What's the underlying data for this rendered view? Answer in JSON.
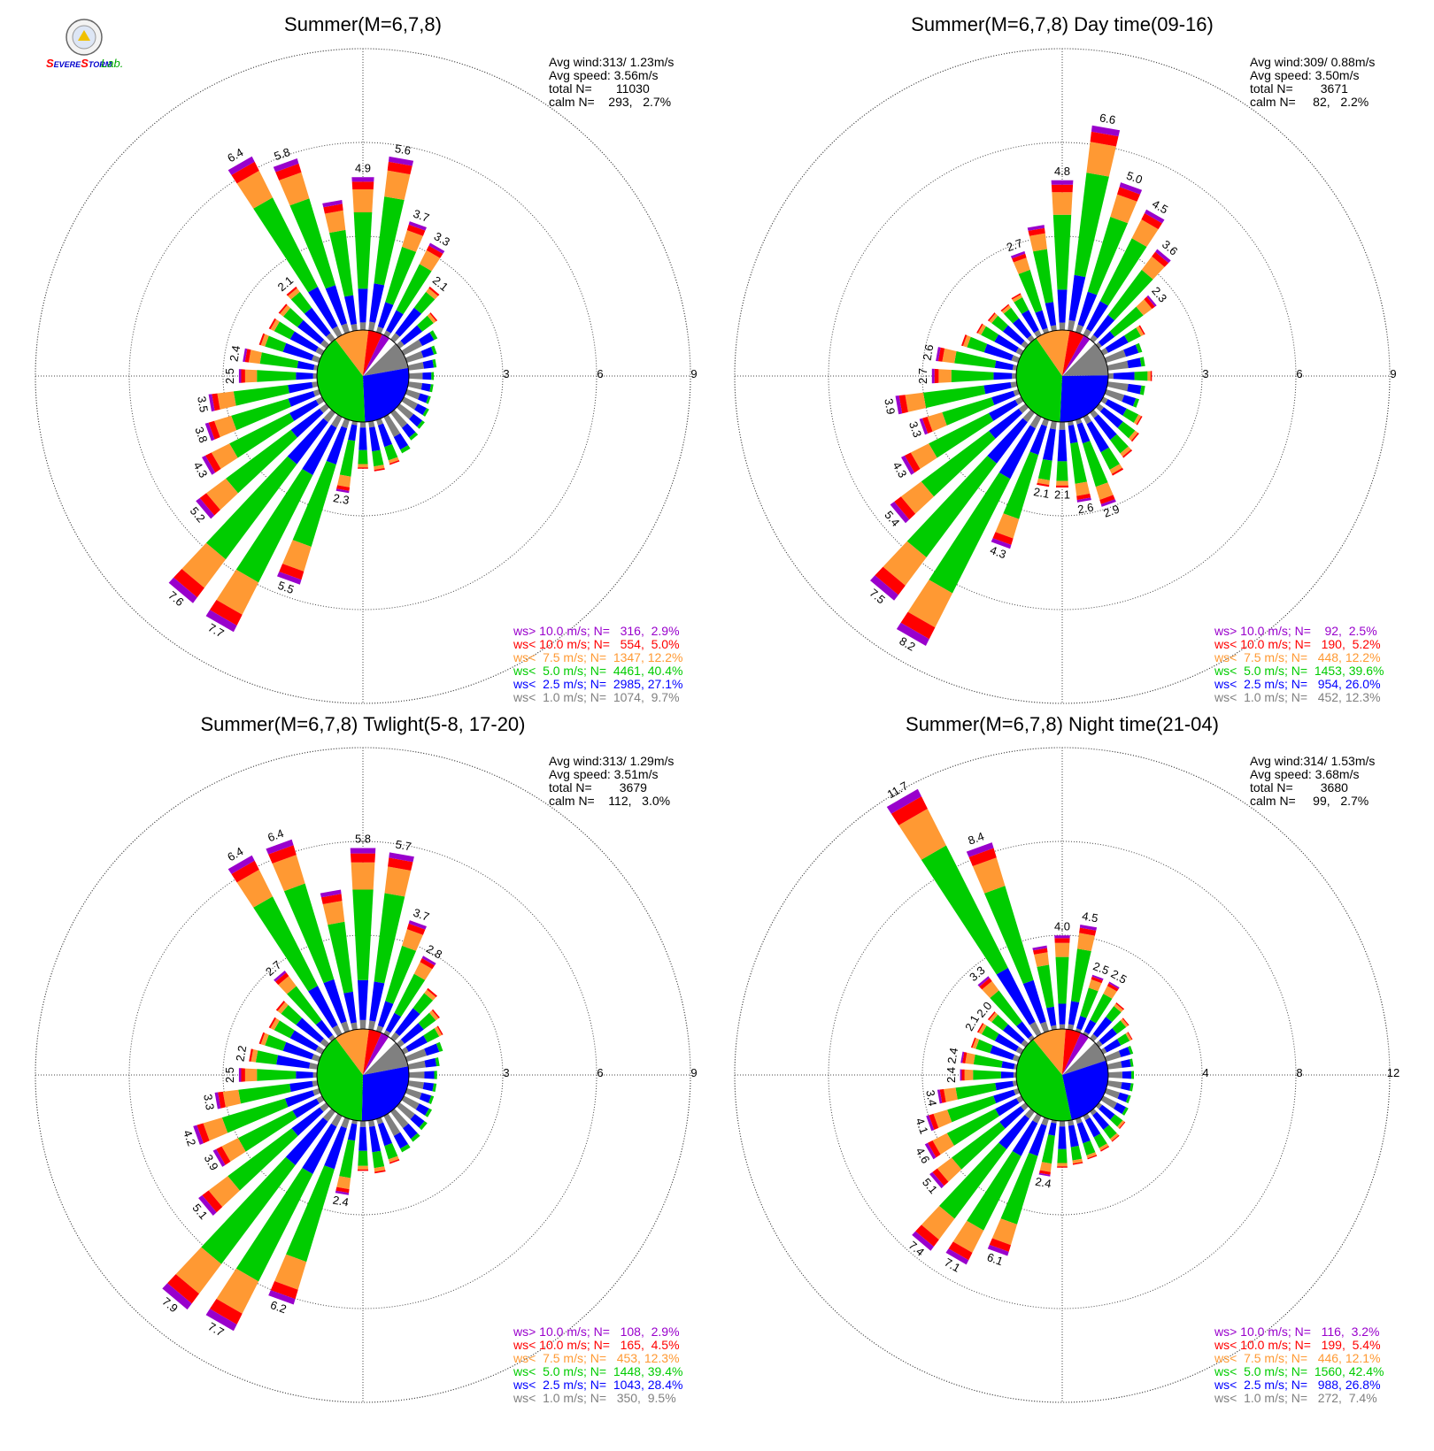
{
  "logo": {
    "name": "Severe Storm Lab.",
    "text": "Lab."
  },
  "colors": {
    "gt10": "#9900cc",
    "lt10": "#ff0000",
    "lt75": "#ff9933",
    "lt5": "#00cc00",
    "lt25": "#0000ff",
    "lt1": "#808080",
    "calm": "#ffffff"
  },
  "chart_data": [
    {
      "type": "windrose",
      "title": "Summer(M=6,7,8)",
      "stats": [
        "Avg wind:313/ 1.23m/s",
        "Avg speed: 3.56m/s",
        "total N=       11030",
        "calm N=    293,   2.7%"
      ],
      "rings": [
        "3",
        "6",
        "9"
      ],
      "rmax": 9,
      "legend": [
        "ws> 10.0 m/s; N=   316,  2.9%",
        "ws< 10.0 m/s; N=   554,  5.0%",
        "ws<  7.5 m/s; N=  1347, 12.2%",
        "ws<  5.0 m/s; N=  4461, 40.4%",
        "ws<  2.5 m/s; N=  2985, 27.1%",
        "ws<  1.0 m/s; N=  1074,  9.7%"
      ],
      "pie": [
        9.7,
        27.1,
        40.4,
        12.2,
        5.0,
        2.9,
        2.7
      ],
      "sectors": [
        {
          "dir": 0,
          "v": 4.9,
          "label": "4.9"
        },
        {
          "dir": 10,
          "v": 5.6,
          "label": "5.6"
        },
        {
          "dir": 20,
          "v": 3.7,
          "label": "3.7"
        },
        {
          "dir": 30,
          "v": 3.3,
          "label": "3.3"
        },
        {
          "dir": 40,
          "v": 2.1,
          "label": "2.1"
        },
        {
          "dir": 50,
          "v": 1.5
        },
        {
          "dir": 60,
          "v": 1.2
        },
        {
          "dir": 70,
          "v": 1.0
        },
        {
          "dir": 80,
          "v": 0.9
        },
        {
          "dir": 90,
          "v": 0.8
        },
        {
          "dir": 100,
          "v": 0.8
        },
        {
          "dir": 110,
          "v": 0.8
        },
        {
          "dir": 120,
          "v": 0.9
        },
        {
          "dir": 130,
          "v": 1.0
        },
        {
          "dir": 140,
          "v": 1.1
        },
        {
          "dir": 150,
          "v": 1.3
        },
        {
          "dir": 160,
          "v": 1.5
        },
        {
          "dir": 170,
          "v": 1.6
        },
        {
          "dir": 180,
          "v": 1.5
        },
        {
          "dir": 190,
          "v": 2.3,
          "label": "2.3"
        },
        {
          "dir": 200,
          "v": 5.5,
          "label": "5.5"
        },
        {
          "dir": 210,
          "v": 7.7,
          "label": "7.7"
        },
        {
          "dir": 220,
          "v": 7.6,
          "label": "7.6"
        },
        {
          "dir": 230,
          "v": 5.2,
          "label": "5.2"
        },
        {
          "dir": 240,
          "v": 4.3,
          "label": "4.3"
        },
        {
          "dir": 250,
          "v": 3.8,
          "label": "3.8"
        },
        {
          "dir": 260,
          "v": 3.5,
          "label": "3.5"
        },
        {
          "dir": 270,
          "v": 2.5,
          "label": "2.5"
        },
        {
          "dir": 280,
          "v": 2.4,
          "label": "2.4"
        },
        {
          "dir": 290,
          "v": 2.0
        },
        {
          "dir": 300,
          "v": 1.9
        },
        {
          "dir": 310,
          "v": 1.9
        },
        {
          "dir": 320,
          "v": 2.1,
          "label": "2.1"
        },
        {
          "dir": 330,
          "v": 6.4,
          "label": "6.4"
        },
        {
          "dir": 340,
          "v": 5.8,
          "label": "5.8"
        },
        {
          "dir": 350,
          "v": 4.2
        }
      ]
    },
    {
      "type": "windrose",
      "title": "Summer(M=6,7,8) Day time(09-16)",
      "stats": [
        "Avg wind:309/ 0.88m/s",
        "Avg speed: 3.50m/s",
        "total N=        3671",
        "calm N=     82,   2.2%"
      ],
      "rings": [
        "3",
        "6",
        "9"
      ],
      "rmax": 9,
      "legend": [
        "ws> 10.0 m/s; N=    92,  2.5%",
        "ws< 10.0 m/s; N=   190,  5.2%",
        "ws<  7.5 m/s; N=   448, 12.2%",
        "ws<  5.0 m/s; N=  1453, 39.6%",
        "ws<  2.5 m/s; N=   954, 26.0%",
        "ws<  1.0 m/s; N=   452, 12.3%"
      ],
      "pie": [
        12.3,
        26.0,
        39.6,
        12.2,
        5.2,
        2.5,
        2.2
      ],
      "sectors": [
        {
          "dir": 0,
          "v": 4.8,
          "label": "4.8"
        },
        {
          "dir": 10,
          "v": 6.6,
          "label": "6.6"
        },
        {
          "dir": 20,
          "v": 5.0,
          "label": "5.0"
        },
        {
          "dir": 30,
          "v": 4.5,
          "label": "4.5"
        },
        {
          "dir": 40,
          "v": 3.6,
          "label": "3.6"
        },
        {
          "dir": 50,
          "v": 2.3,
          "label": "2.3"
        },
        {
          "dir": 60,
          "v": 1.5
        },
        {
          "dir": 70,
          "v": 1.2
        },
        {
          "dir": 80,
          "v": 1.2
        },
        {
          "dir": 90,
          "v": 1.4
        },
        {
          "dir": 100,
          "v": 1.2
        },
        {
          "dir": 110,
          "v": 1.1
        },
        {
          "dir": 120,
          "v": 1.4
        },
        {
          "dir": 130,
          "v": 1.6
        },
        {
          "dir": 140,
          "v": 1.8
        },
        {
          "dir": 150,
          "v": 2.1
        },
        {
          "dir": 160,
          "v": 2.9,
          "label": "2.9"
        },
        {
          "dir": 170,
          "v": 2.6,
          "label": "2.6"
        },
        {
          "dir": 180,
          "v": 2.1,
          "label": "2.1"
        },
        {
          "dir": 190,
          "v": 2.1,
          "label": "2.1"
        },
        {
          "dir": 200,
          "v": 4.3,
          "label": "4.3"
        },
        {
          "dir": 210,
          "v": 8.2,
          "label": "8.2"
        },
        {
          "dir": 220,
          "v": 7.5,
          "label": "7.5"
        },
        {
          "dir": 230,
          "v": 5.4,
          "label": "5.4"
        },
        {
          "dir": 240,
          "v": 4.3,
          "label": "4.3"
        },
        {
          "dir": 250,
          "v": 3.3,
          "label": "3.3"
        },
        {
          "dir": 260,
          "v": 3.9,
          "label": "3.9"
        },
        {
          "dir": 270,
          "v": 2.7,
          "label": "2.7"
        },
        {
          "dir": 280,
          "v": 2.6,
          "label": "2.6"
        },
        {
          "dir": 290,
          "v": 1.9
        },
        {
          "dir": 300,
          "v": 1.6
        },
        {
          "dir": 310,
          "v": 1.5
        },
        {
          "dir": 320,
          "v": 1.4
        },
        {
          "dir": 330,
          "v": 1.5
        },
        {
          "dir": 340,
          "v": 2.7,
          "label": "2.7"
        },
        {
          "dir": 350,
          "v": 3.4
        }
      ]
    },
    {
      "type": "windrose",
      "title": "Summer(M=6,7,8) Twlight(5-8, 17-20)",
      "stats": [
        "Avg wind:313/ 1.29m/s",
        "Avg speed: 3.51m/s",
        "total N=        3679",
        "calm N=    112,   3.0%"
      ],
      "rings": [
        "3",
        "6",
        "9"
      ],
      "rmax": 9,
      "legend": [
        "ws> 10.0 m/s; N=   108,  2.9%",
        "ws< 10.0 m/s; N=   165,  4.5%",
        "ws<  7.5 m/s; N=   453, 12.3%",
        "ws<  5.0 m/s; N=  1448, 39.4%",
        "ws<  2.5 m/s; N=  1043, 28.4%",
        "ws<  1.0 m/s; N=   350,  9.5%"
      ],
      "pie": [
        9.5,
        28.4,
        39.4,
        12.3,
        4.5,
        2.9,
        3.0
      ],
      "sectors": [
        {
          "dir": 0,
          "v": 5.8,
          "label": "5.8"
        },
        {
          "dir": 10,
          "v": 5.7,
          "label": "5.7"
        },
        {
          "dir": 20,
          "v": 3.7,
          "label": "3.7"
        },
        {
          "dir": 30,
          "v": 2.8,
          "label": "2.8"
        },
        {
          "dir": 40,
          "v": 2.0
        },
        {
          "dir": 50,
          "v": 1.6
        },
        {
          "dir": 60,
          "v": 1.4
        },
        {
          "dir": 70,
          "v": 1.2
        },
        {
          "dir": 80,
          "v": 1.0
        },
        {
          "dir": 90,
          "v": 0.9
        },
        {
          "dir": 100,
          "v": 0.9
        },
        {
          "dir": 110,
          "v": 0.9
        },
        {
          "dir": 120,
          "v": 1.0
        },
        {
          "dir": 130,
          "v": 1.1
        },
        {
          "dir": 140,
          "v": 1.2
        },
        {
          "dir": 150,
          "v": 1.3
        },
        {
          "dir": 160,
          "v": 1.5
        },
        {
          "dir": 170,
          "v": 1.7
        },
        {
          "dir": 180,
          "v": 1.6
        },
        {
          "dir": 190,
          "v": 2.4,
          "label": "2.4"
        },
        {
          "dir": 200,
          "v": 6.2,
          "label": "6.2"
        },
        {
          "dir": 210,
          "v": 7.7,
          "label": "7.7"
        },
        {
          "dir": 220,
          "v": 7.9,
          "label": "7.9"
        },
        {
          "dir": 230,
          "v": 5.1,
          "label": "5.1"
        },
        {
          "dir": 240,
          "v": 3.9,
          "label": "3.9"
        },
        {
          "dir": 250,
          "v": 4.2,
          "label": "4.2"
        },
        {
          "dir": 260,
          "v": 3.3,
          "label": "3.3"
        },
        {
          "dir": 270,
          "v": 2.5,
          "label": "2.5"
        },
        {
          "dir": 280,
          "v": 2.2,
          "label": "2.2"
        },
        {
          "dir": 290,
          "v": 2.0
        },
        {
          "dir": 300,
          "v": 1.9
        },
        {
          "dir": 310,
          "v": 2.0
        },
        {
          "dir": 320,
          "v": 2.7,
          "label": "2.7"
        },
        {
          "dir": 330,
          "v": 6.4,
          "label": "6.4"
        },
        {
          "dir": 340,
          "v": 6.4,
          "label": "6.4"
        },
        {
          "dir": 350,
          "v": 4.5
        }
      ]
    },
    {
      "type": "windrose",
      "title": "Summer(M=6,7,8) Night time(21-04)",
      "stats": [
        "Avg wind:314/ 1.53m/s",
        "Avg speed: 3.68m/s",
        "total N=        3680",
        "calm N=     99,   2.7%"
      ],
      "rings": [
        "4",
        "8",
        "12"
      ],
      "rmax": 12,
      "legend": [
        "ws> 10.0 m/s; N=   116,  3.2%",
        "ws< 10.0 m/s; N=   199,  5.4%",
        "ws<  7.5 m/s; N=   446, 12.1%",
        "ws<  5.0 m/s; N=  1560, 42.4%",
        "ws<  2.5 m/s; N=   988, 26.8%",
        "ws<  1.0 m/s; N=   272,  7.4%"
      ],
      "pie": [
        7.4,
        26.8,
        42.4,
        12.1,
        5.4,
        3.2,
        2.7
      ],
      "sectors": [
        {
          "dir": 0,
          "v": 4.0,
          "label": "4.0"
        },
        {
          "dir": 10,
          "v": 4.5,
          "label": "4.5"
        },
        {
          "dir": 20,
          "v": 2.5,
          "label": "2.5"
        },
        {
          "dir": 30,
          "v": 2.5,
          "label": "2.5"
        },
        {
          "dir": 40,
          "v": 1.9
        },
        {
          "dir": 50,
          "v": 1.6
        },
        {
          "dir": 60,
          "v": 1.4
        },
        {
          "dir": 70,
          "v": 1.2
        },
        {
          "dir": 80,
          "v": 1.1
        },
        {
          "dir": 90,
          "v": 1.1
        },
        {
          "dir": 100,
          "v": 1.1
        },
        {
          "dir": 110,
          "v": 1.1
        },
        {
          "dir": 120,
          "v": 1.2
        },
        {
          "dir": 130,
          "v": 1.4
        },
        {
          "dir": 140,
          "v": 1.6
        },
        {
          "dir": 150,
          "v": 1.7
        },
        {
          "dir": 160,
          "v": 1.8
        },
        {
          "dir": 170,
          "v": 1.9
        },
        {
          "dir": 180,
          "v": 2.0
        },
        {
          "dir": 190,
          "v": 2.4,
          "label": "2.4"
        },
        {
          "dir": 200,
          "v": 6.1,
          "label": "6.1"
        },
        {
          "dir": 210,
          "v": 7.1,
          "label": "7.1"
        },
        {
          "dir": 220,
          "v": 7.4,
          "label": "7.4"
        },
        {
          "dir": 230,
          "v": 5.1,
          "label": "5.1"
        },
        {
          "dir": 240,
          "v": 4.6,
          "label": "4.6"
        },
        {
          "dir": 250,
          "v": 4.1,
          "label": "4.1"
        },
        {
          "dir": 260,
          "v": 3.4,
          "label": "3.4"
        },
        {
          "dir": 270,
          "v": 2.4,
          "label": "2.4"
        },
        {
          "dir": 280,
          "v": 2.4,
          "label": "2.4"
        },
        {
          "dir": 290,
          "v": 2.1
        },
        {
          "dir": 300,
          "v": 2.1,
          "label": "2.1"
        },
        {
          "dir": 310,
          "v": 2.0,
          "label": "2.0"
        },
        {
          "dir": 320,
          "v": 3.3,
          "label": "3.3"
        },
        {
          "dir": 330,
          "v": 11.7,
          "label": "11.7"
        },
        {
          "dir": 340,
          "v": 8.4,
          "label": "8.4"
        },
        {
          "dir": 350,
          "v": 3.6
        }
      ]
    }
  ]
}
